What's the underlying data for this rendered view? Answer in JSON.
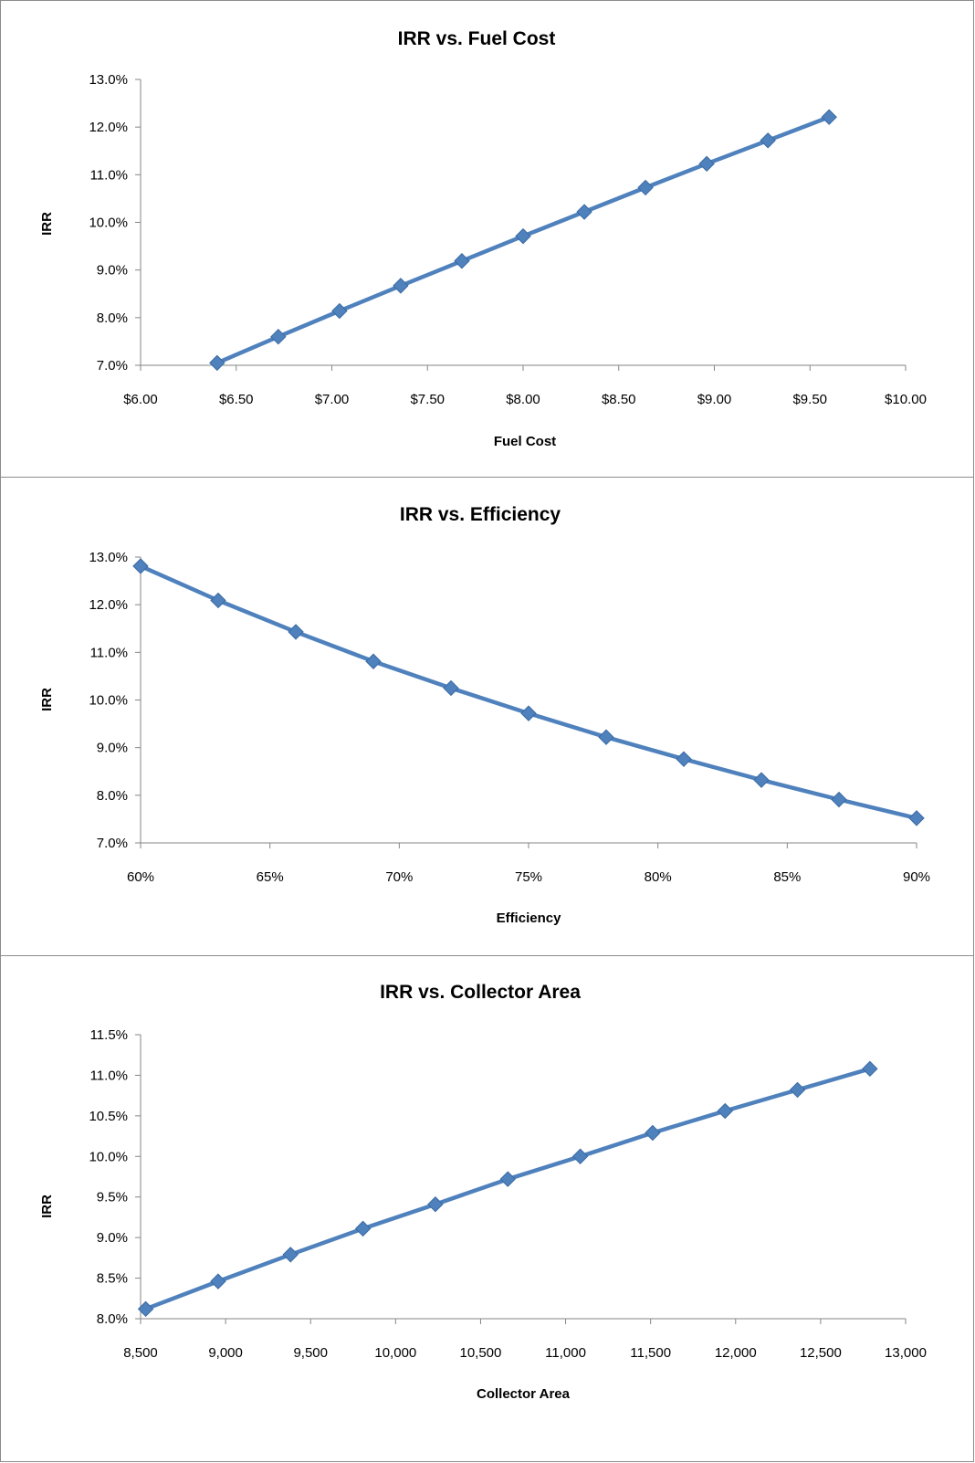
{
  "chart_data": [
    {
      "type": "line",
      "title": "IRR vs. Fuel Cost",
      "xlabel": "Fuel Cost",
      "ylabel": "IRR",
      "xlim": [
        6.0,
        10.0
      ],
      "ylim": [
        0.07,
        0.13
      ],
      "x_ticks": [
        6.0,
        6.5,
        7.0,
        7.5,
        8.0,
        8.5,
        9.0,
        9.5,
        10.0
      ],
      "y_ticks": [
        0.07,
        0.08,
        0.09,
        0.1,
        0.11,
        0.12,
        0.13
      ],
      "x_tick_labels": [
        "$6.00",
        "$6.50",
        "$7.00",
        "$7.50",
        "$8.00",
        "$8.50",
        "$9.00",
        "$9.50",
        "$10.00"
      ],
      "y_tick_labels": [
        "7.0%",
        "8.0%",
        "9.0%",
        "10.0%",
        "11.0%",
        "12.0%",
        "13.0%"
      ],
      "grid": false,
      "series": [
        {
          "color": "#4f81bd",
          "marker": "diamond",
          "x": [
            6.4,
            6.72,
            7.04,
            7.36,
            7.68,
            8.0,
            8.32,
            8.64,
            8.96,
            9.28,
            9.6
          ],
          "y": [
            0.0705,
            0.076,
            0.0814,
            0.0867,
            0.0919,
            0.0971,
            0.1022,
            0.1073,
            0.1123,
            0.1172,
            0.1221
          ]
        }
      ]
    },
    {
      "type": "line",
      "title": "IRR vs. Efficiency",
      "xlabel": "Efficiency",
      "ylabel": "IRR",
      "xlim": [
        0.6,
        0.9
      ],
      "ylim": [
        0.07,
        0.13
      ],
      "x_ticks": [
        0.6,
        0.65,
        0.7,
        0.75,
        0.8,
        0.85,
        0.9
      ],
      "y_ticks": [
        0.07,
        0.08,
        0.09,
        0.1,
        0.11,
        0.12,
        0.13
      ],
      "x_tick_labels": [
        "60%",
        "65%",
        "70%",
        "75%",
        "80%",
        "85%",
        "90%"
      ],
      "y_tick_labels": [
        "7.0%",
        "8.0%",
        "9.0%",
        "10.0%",
        "11.0%",
        "12.0%",
        "13.0%"
      ],
      "grid": false,
      "series": [
        {
          "color": "#4f81bd",
          "marker": "diamond",
          "x": [
            0.6,
            0.63,
            0.66,
            0.69,
            0.72,
            0.75,
            0.78,
            0.81,
            0.84,
            0.87,
            0.9
          ],
          "y": [
            0.1281,
            0.1209,
            0.1143,
            0.1081,
            0.1025,
            0.0972,
            0.0922,
            0.0876,
            0.0832,
            0.0791,
            0.0752
          ]
        }
      ]
    },
    {
      "type": "line",
      "title": "IRR vs. Collector Area",
      "xlabel": "Collector Area",
      "ylabel": "IRR",
      "xlim": [
        8500,
        13000
      ],
      "ylim": [
        0.08,
        0.115
      ],
      "x_ticks": [
        8500,
        9000,
        9500,
        10000,
        10500,
        11000,
        11500,
        12000,
        12500,
        13000
      ],
      "y_ticks": [
        0.08,
        0.085,
        0.09,
        0.095,
        0.1,
        0.105,
        0.11,
        0.115
      ],
      "x_tick_labels": [
        "8,500",
        "9,000",
        "9,500",
        "10,000",
        "10,500",
        "11,000",
        "11,500",
        "12,000",
        "12,500",
        "13,000"
      ],
      "y_tick_labels": [
        "8.0%",
        "8.5%",
        "9.0%",
        "9.5%",
        "10.0%",
        "10.5%",
        "11.0%",
        "11.5%"
      ],
      "grid": false,
      "series": [
        {
          "color": "#4f81bd",
          "marker": "diamond",
          "x": [
            8530,
            8956,
            9382,
            9808,
            10234,
            10660,
            11086,
            11512,
            11938,
            12364,
            12790
          ],
          "y": [
            0.0812,
            0.0846,
            0.0879,
            0.0911,
            0.0941,
            0.0972,
            0.1,
            0.1029,
            0.1056,
            0.1082,
            0.1108
          ]
        }
      ]
    }
  ]
}
